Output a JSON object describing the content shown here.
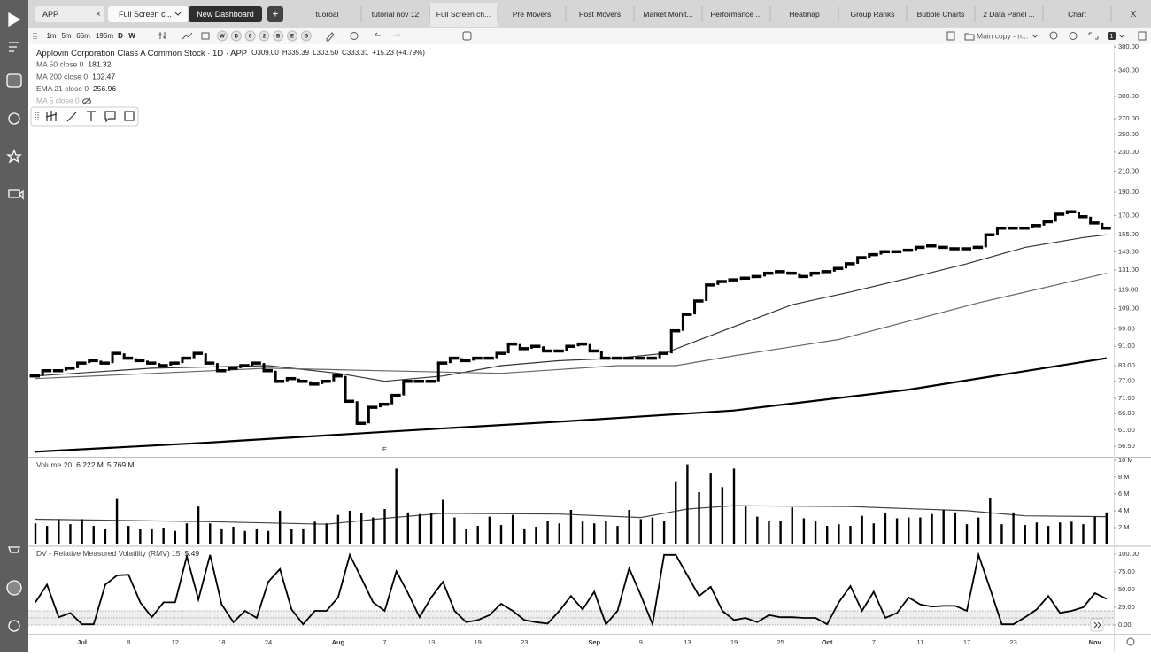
{
  "tab_bar": {
    "search": "APP",
    "layout": "Full Screen c...",
    "new_dashboard": "New Dashboard",
    "add": "+",
    "close": "X",
    "tabs": [
      "tuoroal",
      "tutorial nov 12",
      "Full Screen ch...",
      "Pre Movers",
      "Post Movers",
      "Market Monit...",
      "Performance ...",
      "Heatmap",
      "Group Ranks",
      "Bubble Charts",
      "2 Data Panel ...",
      "Chart"
    ]
  },
  "toolbar": {
    "intervals": [
      "1m",
      "5m",
      "65m",
      "195m",
      "D",
      "W"
    ],
    "markers": [
      "W",
      "D",
      "6",
      "2",
      "B",
      "E",
      "G"
    ],
    "layout_name": "Main copy - n...",
    "pane_count": "1"
  },
  "legend": {
    "title": "Applovin Corporation Class A Common Stock · 1D · APP",
    "ohlc": [
      "O309.00",
      "H335.39",
      "L303.50",
      "C333.31"
    ],
    "change": "+15.23 (+4.79%)",
    "indicators": [
      {
        "name": "MA 50 close 0",
        "value": "181.32"
      },
      {
        "name": "MA 200 close 0",
        "value": "102.47"
      },
      {
        "name": "EMA 21 close 0",
        "value": "256.96"
      },
      {
        "name": "MA 5 close 0"
      }
    ],
    "volume": {
      "name": "Volume 20",
      "values": [
        "6.222 M",
        "5.769 M"
      ]
    },
    "rmv": {
      "name": "DV - Relative Measured Volatility (RMV) 15",
      "value": "5.49"
    }
  },
  "chart_data": [
    {
      "type": "step",
      "log": true,
      "color": "#000",
      "event_marker": {
        "index": 30,
        "label": "E"
      },
      "values": [
        79,
        81,
        81,
        82,
        84,
        85,
        84,
        88,
        86,
        85,
        84,
        83,
        84,
        86,
        88,
        84,
        81,
        82,
        83,
        84,
        81,
        77,
        78,
        77,
        76,
        77,
        79,
        70,
        63,
        68,
        69,
        72,
        77,
        77,
        77,
        84,
        86,
        85,
        86,
        86,
        88,
        92,
        90,
        91,
        89,
        89,
        91,
        92,
        89,
        86,
        86,
        86,
        86,
        86,
        88,
        98,
        106,
        113,
        122,
        124,
        125,
        126,
        127,
        129,
        130,
        129,
        127,
        129,
        130,
        132,
        135,
        139,
        141,
        143,
        143,
        144,
        146,
        147,
        146,
        145,
        145,
        146,
        155,
        160,
        160,
        160,
        162,
        165,
        171,
        173,
        169,
        164,
        160
      ],
      "overlays": [
        {
          "x": [
            0,
            10,
            20,
            26,
            30,
            35,
            40,
            45,
            50,
            54,
            60,
            65,
            70,
            75,
            80,
            85,
            90,
            92
          ],
          "values": [
            79,
            82,
            83,
            80,
            77,
            79,
            83,
            85,
            86,
            88,
            100,
            111,
            118,
            126,
            135,
            146,
            153,
            155
          ],
          "color": "#333"
        },
        {
          "x": [
            0,
            20,
            30,
            40,
            50,
            55,
            60,
            69,
            81,
            92
          ],
          "values": [
            78,
            82,
            81,
            80,
            83,
            83,
            87,
            94,
            112,
            129
          ],
          "color": "#666"
        },
        {
          "x": [
            0,
            15,
            30,
            45,
            60,
            75,
            92
          ],
          "values": [
            55,
            57.5,
            60.5,
            63.5,
            67,
            74,
            86
          ],
          "color": "#000"
        }
      ],
      "ylim": [
        53.7,
        385
      ],
      "yticks": [
        {
          "value": 380,
          "label": "380.00"
        },
        {
          "value": 340,
          "label": "340.00"
        },
        {
          "value": 300,
          "label": "300.00"
        },
        {
          "value": 270,
          "label": "270.00"
        },
        {
          "value": 250,
          "label": "250.00"
        },
        {
          "value": 230,
          "label": "230.00"
        },
        {
          "value": 210,
          "label": "210.00"
        },
        {
          "value": 190,
          "label": "190.00"
        },
        {
          "value": 170,
          "label": "170.00"
        },
        {
          "value": 155,
          "label": "155.00"
        },
        {
          "value": 143,
          "label": "143.00"
        },
        {
          "value": 131,
          "label": "131.00"
        },
        {
          "value": 119,
          "label": "119.00"
        },
        {
          "value": 109,
          "label": "109.00"
        },
        {
          "value": 99,
          "label": "99.00"
        },
        {
          "value": 91,
          "label": "91.00"
        },
        {
          "value": 83,
          "label": "83.00"
        },
        {
          "value": 77,
          "label": "77.00"
        },
        {
          "value": 71,
          "label": "71.00"
        },
        {
          "value": 66,
          "label": "66.00"
        },
        {
          "value": 61,
          "label": "61.00"
        },
        {
          "value": 56.5,
          "label": "56.50"
        }
      ]
    },
    {
      "type": "bar",
      "color": "#000",
      "values": [
        2.5,
        2.2,
        3,
        2.4,
        3,
        2.2,
        1.8,
        5.4,
        2.2,
        1.8,
        1.9,
        2,
        1.6,
        2.5,
        4.5,
        2.5,
        1.9,
        2.1,
        1.6,
        1.8,
        1.6,
        4,
        1.8,
        1.9,
        2.7,
        2.5,
        3.5,
        4,
        3.7,
        3.2,
        4.2,
        9,
        3.8,
        3.6,
        3.7,
        5.3,
        3.2,
        1.8,
        2.2,
        3.3,
        2.3,
        3.5,
        1.9,
        2.1,
        2.8,
        2.5,
        4.1,
        2.7,
        2.5,
        2.8,
        2.2,
        4.1,
        3,
        3.2,
        2.8,
        7.5,
        9.5,
        6.2,
        8.5,
        6.8,
        9,
        4.5,
        3.3,
        2.8,
        2.8,
        4.4,
        3.1,
        2.8,
        2.2,
        2.4,
        2.2,
        3.4,
        2.5,
        3.7,
        3.1,
        3.2,
        3.2,
        3.6,
        4.1,
        3.8,
        2.4,
        3.2,
        5.5,
        2.4,
        3.8,
        2.3,
        2.6,
        2.2,
        2.6,
        2.7,
        2.4,
        3.3,
        3.8
      ],
      "overlays": [
        {
          "x": [
            0,
            15,
            25,
            30,
            35,
            45,
            52,
            56,
            60,
            70,
            80,
            85,
            92
          ],
          "values": [
            3.0,
            2.7,
            2.4,
            3.1,
            3.7,
            3.6,
            3.2,
            4.2,
            4.6,
            4.5,
            4.0,
            3.4,
            3.3
          ],
          "color": "#444"
        }
      ],
      "ylim": [
        0,
        10.3
      ],
      "yticks": [
        {
          "value": 10,
          "label": "10 M"
        },
        {
          "value": 8,
          "label": "8 M"
        },
        {
          "value": 6,
          "label": "6 M"
        },
        {
          "value": 4,
          "label": "4 M"
        },
        {
          "value": 2,
          "label": "2 M"
        }
      ]
    },
    {
      "type": "line",
      "color": "#000",
      "categories": [
        null,
        null,
        null,
        null,
        "Jul",
        null,
        null,
        null,
        "8",
        null,
        null,
        null,
        "12",
        null,
        null,
        null,
        "18",
        null,
        null,
        null,
        "24",
        null,
        null,
        null,
        null,
        null,
        "Aug",
        null,
        null,
        null,
        "7",
        null,
        null,
        null,
        "13",
        null,
        null,
        null,
        "19",
        null,
        null,
        null,
        "23",
        null,
        null,
        null,
        null,
        null,
        "Sep",
        null,
        null,
        null,
        "9",
        null,
        null,
        null,
        "13",
        null,
        null,
        null,
        "19",
        null,
        null,
        null,
        "25",
        null,
        null,
        null,
        "Oct",
        null,
        null,
        null,
        "7",
        null,
        null,
        null,
        "11",
        null,
        null,
        null,
        "17",
        null,
        null,
        null,
        "23",
        null,
        null,
        null,
        null,
        null,
        null,
        "Nov",
        null
      ],
      "values": [
        32,
        57,
        11,
        17,
        1,
        1,
        57,
        70,
        71,
        32,
        11,
        32,
        32,
        97,
        36,
        99,
        29,
        4,
        20,
        10,
        61,
        79,
        22,
        1,
        20,
        20,
        39,
        99,
        66,
        32,
        20,
        76,
        45,
        11,
        39,
        61,
        20,
        4,
        7,
        14,
        30,
        20,
        7,
        4,
        2,
        20,
        41,
        22,
        47,
        1,
        20,
        80,
        42,
        1,
        99,
        99,
        70,
        41,
        54,
        20,
        7,
        10,
        4,
        14,
        11,
        11,
        10,
        10,
        1,
        32,
        55,
        20,
        47,
        10,
        17,
        39,
        29,
        26,
        27,
        27,
        20,
        99,
        51,
        1,
        1,
        11,
        22,
        41,
        17,
        20,
        25,
        45,
        37
      ],
      "ylim": [
        -12.5,
        110
      ],
      "yticks": [
        {
          "value": 100,
          "label": "100.00"
        },
        {
          "value": 75,
          "label": "75.00"
        },
        {
          "value": 50,
          "label": "50.00"
        },
        {
          "value": 25,
          "label": "25.00"
        },
        {
          "value": 0,
          "label": "0.00"
        }
      ]
    }
  ]
}
